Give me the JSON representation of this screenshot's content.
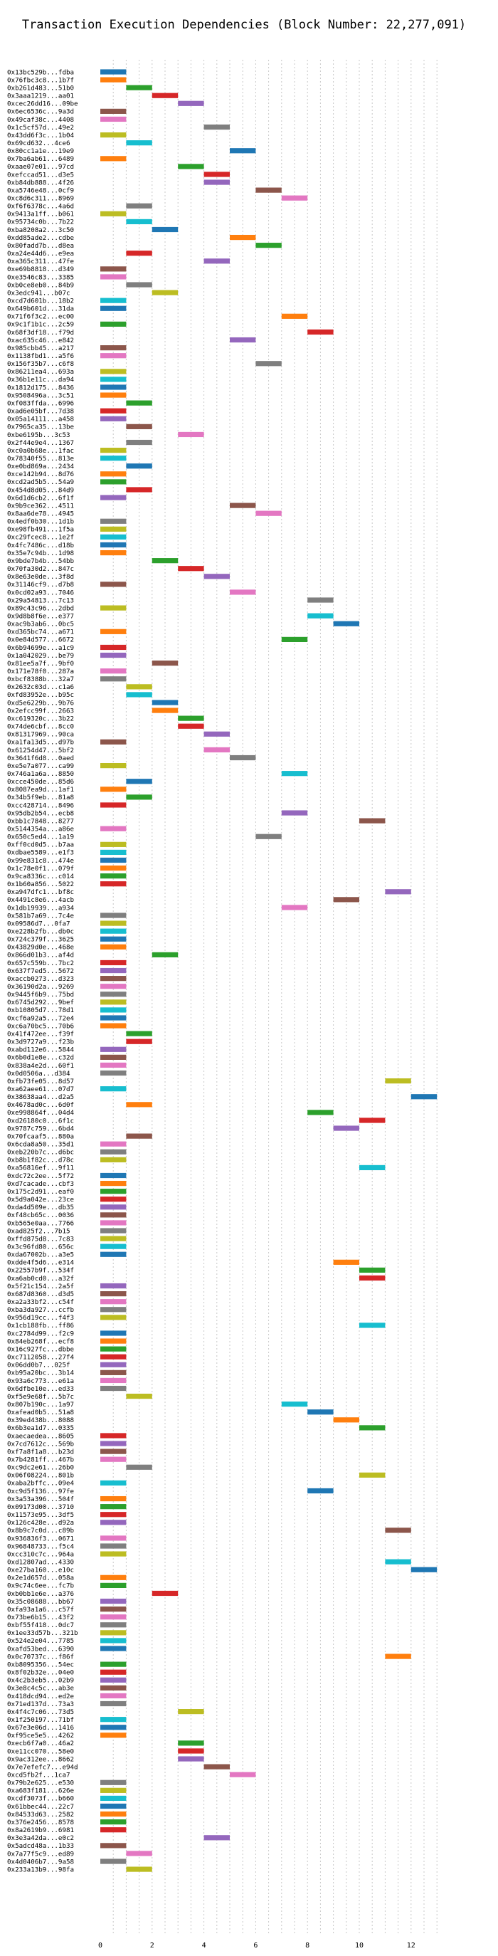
{
  "colors": [
    "#1f77b4",
    "#ff7f0e",
    "#2ca02c",
    "#d62728",
    "#9467bd",
    "#8c564b",
    "#e377c2",
    "#7f7f7f",
    "#bcbd22",
    "#17becf"
  ],
  "chart_data": {
    "type": "gantt",
    "title": "Transaction Execution Dependencies (Block Number: 22,277,091)",
    "xlabel": "",
    "ylabel": "",
    "xlim": [
      0,
      13.2
    ],
    "xticks": [
      0,
      2,
      4,
      6,
      8,
      10,
      12
    ],
    "grid": "vertical dashed",
    "bar_width": 1,
    "rows": [
      [
        "0x13bc529b...fdba",
        0,
        0
      ],
      [
        "0x76fbc3c8...1b7f",
        0,
        1
      ],
      [
        "0xb261d483...51b0",
        1,
        2
      ],
      [
        "0x3aaa1219...aa01",
        2,
        3
      ],
      [
        "0xcec26dd16...09be",
        3,
        4
      ],
      [
        "0x6ec6536c...9a3d",
        0,
        5
      ],
      [
        "0x49caf38c...4408",
        0,
        6
      ],
      [
        "0x1c5cf57d...49e2",
        4,
        7
      ],
      [
        "0x43dd6f3c...1b04",
        0,
        8
      ],
      [
        "0x69cd632...4ce6",
        1,
        9
      ],
      [
        "0x80cc1a1e...19e9",
        5,
        0
      ],
      [
        "0x7ba6ab61...6489",
        0,
        1
      ],
      [
        "0xaae07e01...97cd",
        3,
        2
      ],
      [
        "0xefccad51...d3e5",
        4,
        3
      ],
      [
        "0xb84db888...4f26",
        4,
        4
      ],
      [
        "0xa5746e48...0cf9",
        6,
        5
      ],
      [
        "0xc8d6c311...8969",
        7,
        6
      ],
      [
        "0xf6f6378c...4a6d",
        1,
        7
      ],
      [
        "0x9413a1ff...b061",
        0,
        8
      ],
      [
        "0x95734c0b...7b22",
        1,
        9
      ],
      [
        "0xba8208a2...3c50",
        2,
        0
      ],
      [
        "0xdd85ade2...cdbe",
        5,
        1
      ],
      [
        "0x80fadd7b...d8ea",
        6,
        2
      ],
      [
        "0xa24e44d6...e9ea",
        1,
        3
      ],
      [
        "0xa365c311...47fe",
        4,
        4
      ],
      [
        "0xe69b8818...d349",
        0,
        5
      ],
      [
        "0xe3546c83...3385",
        0,
        6
      ],
      [
        "0xb0ce8eb0...84b9",
        1,
        7
      ],
      [
        "0x3edc941...b07c",
        2,
        8
      ],
      [
        "0xcd7d601b...18b2",
        0,
        9
      ],
      [
        "0x649b601d...31da",
        0,
        0
      ],
      [
        "0x71f6f3c2...ec00",
        7,
        1
      ],
      [
        "0x9c1f1b1c...2c59",
        0,
        2
      ],
      [
        "0x68f3df18...f79d",
        8,
        3
      ],
      [
        "0xac635c46...e842",
        5,
        4
      ],
      [
        "0x985cbb45...a217",
        0,
        5
      ],
      [
        "0x1138fbd1...a5f6",
        0,
        6
      ],
      [
        "0x156f35b7...c6f8",
        6,
        7
      ],
      [
        "0x86211ea4...693a",
        0,
        8
      ],
      [
        "0x36b1e11c...da94",
        0,
        9
      ],
      [
        "0x1812d175...8436",
        0,
        0
      ],
      [
        "0x9508496a...3c51",
        0,
        1
      ],
      [
        "0xf083ffda...6996",
        1,
        2
      ],
      [
        "0xad6e05bf...7d38",
        0,
        3
      ],
      [
        "0x05a14111...a458",
        0,
        4
      ],
      [
        "0x7965ca35...13be",
        1,
        5
      ],
      [
        "0xbe6195b...3c53",
        3,
        6
      ],
      [
        "0x2f44e9e4...1367",
        1,
        7
      ],
      [
        "0xc0a0b68e...1fac",
        0,
        8
      ],
      [
        "0x78340f55...813e",
        0,
        9
      ],
      [
        "0xe0bd869a...2434",
        1,
        0
      ],
      [
        "0xce142b94...8d76",
        0,
        1
      ],
      [
        "0xcd2ad5b5...54a9",
        0,
        2
      ],
      [
        "0x454d8d05...84d9",
        1,
        3
      ],
      [
        "0x6d1d6cb2...6f1f",
        0,
        4
      ],
      [
        "0x9b9ce362...4511",
        5,
        5
      ],
      [
        "0x8aa6de78...4945",
        6,
        6
      ],
      [
        "0x4edf0b30...1d1b",
        0,
        7
      ],
      [
        "0xe98fb491...1f5a",
        0,
        8
      ],
      [
        "0xc29fcec8...1e2f",
        0,
        9
      ],
      [
        "0x4fc7486c...d18b",
        0,
        0
      ],
      [
        "0x35e7c94b...1d98",
        0,
        1
      ],
      [
        "0x9bde7b4b...54bb",
        2,
        2
      ],
      [
        "0x70fa30d2...847c",
        3,
        3
      ],
      [
        "0x8e63e0de...3f8d",
        4,
        4
      ],
      [
        "0x31146cf9...d7b8",
        0,
        5
      ],
      [
        "0x0cd02a93...7046",
        5,
        6
      ],
      [
        "0x29a54813...7c13",
        8,
        7
      ],
      [
        "0x89c43c96...2dbd",
        0,
        8
      ],
      [
        "0x9d8b8f6e...e377",
        8,
        9
      ],
      [
        "0xac9b3ab6...0bc5",
        9,
        0
      ],
      [
        "0xd365bc74...a671",
        0,
        1
      ],
      [
        "0x0e84d577...6672",
        7,
        2
      ],
      [
        "0x6b94699e...a1c9",
        0,
        3
      ],
      [
        "0x1a042029...be79",
        0,
        4
      ],
      [
        "0x81ee5a7f...9bf0",
        2,
        5
      ],
      [
        "0x171e78f0...287a",
        0,
        6
      ],
      [
        "0xbcf8388b...32a7",
        0,
        7
      ],
      [
        "0x2632c03d...c1a6",
        1,
        8
      ],
      [
        "0xfd83952e...b95c",
        1,
        9
      ],
      [
        "0xd5e6229b...9b76",
        2,
        0
      ],
      [
        "0x2efcc99f...2663",
        2,
        1
      ],
      [
        "0xc619320c...3b22",
        3,
        2
      ],
      [
        "0x74de6cbf...8cc0",
        3,
        3
      ],
      [
        "0x81317969...90ca",
        4,
        4
      ],
      [
        "0xa1fa13d5...d97b",
        0,
        5
      ],
      [
        "0x61254d47...5bf2",
        4,
        6
      ],
      [
        "0x3641f6d8...0aed",
        5,
        7
      ],
      [
        "0xe5e7a077...ca99",
        0,
        8
      ],
      [
        "0x746a1a6a...8850",
        7,
        9
      ],
      [
        "0xcce450de...85d6",
        1,
        0
      ],
      [
        "0x8087ea9d...1af1",
        0,
        1
      ],
      [
        "0x34b5f9eb...81a8",
        1,
        2
      ],
      [
        "0xcc428714...8496",
        0,
        3
      ],
      [
        "0x95db2b54...ecb8",
        7,
        4
      ],
      [
        "0xbb1c7848...8277",
        10,
        5
      ],
      [
        "0x5144354a...a86e",
        0,
        6
      ],
      [
        "0x650c5ed4...1a19",
        6,
        7
      ],
      [
        "0xff0cd0d5...b7aa",
        0,
        8
      ],
      [
        "0xdbae5589...e1f3",
        0,
        9
      ],
      [
        "0x99e831c8...474e",
        0,
        0
      ],
      [
        "0x1c78e0f1...079f",
        0,
        1
      ],
      [
        "0x9ca8336c...c014",
        0,
        2
      ],
      [
        "0x1b60a856...5022",
        0,
        3
      ],
      [
        "0xa947dfc1...bf8c",
        11,
        4
      ],
      [
        "0x4491c8e6...4acb",
        9,
        5
      ],
      [
        "0x1db19939...a934",
        7,
        6
      ],
      [
        "0x581b7a69...7c4e",
        0,
        7
      ],
      [
        "0x09586d7...0fa7",
        0,
        8
      ],
      [
        "0xe228b2fb...db0c",
        0,
        9
      ],
      [
        "0x724c379f...3625",
        0,
        0
      ],
      [
        "0x43829d0e...468e",
        0,
        1
      ],
      [
        "0x866d01b3...af4d",
        2,
        2
      ],
      [
        "0x657c559b...7bc2",
        0,
        3
      ],
      [
        "0x637f7ed5...5672",
        0,
        4
      ],
      [
        "0xaccb0273...d323",
        0,
        5
      ],
      [
        "0x36190d2a...9269",
        0,
        6
      ],
      [
        "0x9445f6b9...75bd",
        0,
        7
      ],
      [
        "0x6745d292...9bef",
        0,
        8
      ],
      [
        "0xb10805d7...78d1",
        0,
        9
      ],
      [
        "0xcf6a92a5...72e4",
        0,
        0
      ],
      [
        "0xc6a70bc5...70b6",
        0,
        1
      ],
      [
        "0x41f472ee...f39f",
        1,
        2
      ],
      [
        "0x3d9727a9...f23b",
        1,
        3
      ],
      [
        "0xabd112e6...5844",
        0,
        4
      ],
      [
        "0x6b0d1e8e...c32d",
        0,
        5
      ],
      [
        "0x838a4e2d...60f1",
        0,
        6
      ],
      [
        "0x0d0506a...d384",
        0,
        7
      ],
      [
        "0xfb73fe05...8d57",
        11,
        8
      ],
      [
        "0xa62aee61...07d7",
        0,
        9
      ],
      [
        "0x38638aa4...d2a5",
        12,
        0
      ],
      [
        "0x4678ad0c...6d0f",
        1,
        1
      ],
      [
        "0xe998864f...04d4",
        8,
        2
      ],
      [
        "0xd26180c0...6f1c",
        10,
        3
      ],
      [
        "0x9787c759...6bd4",
        9,
        4
      ],
      [
        "0x70fcaaf5...880a",
        1,
        5
      ],
      [
        "0x6cda8a50...35d1",
        0,
        6
      ],
      [
        "0xeb220b7c...d6bc",
        0,
        7
      ],
      [
        "0xb8b1f82c...d78c",
        0,
        8
      ],
      [
        "0xa56816ef...9f11",
        10,
        9
      ],
      [
        "0xdc72c2ee...5f72",
        0,
        0
      ],
      [
        "0xd7cacade...cbf3",
        0,
        1
      ],
      [
        "0x175c2d91...eaf0",
        0,
        2
      ],
      [
        "0x5d9a042e...23ce",
        0,
        3
      ],
      [
        "0xda4d509e...db35",
        0,
        4
      ],
      [
        "0xf48cb65c...0036",
        0,
        5
      ],
      [
        "0xb565e0aa...7766",
        0,
        6
      ],
      [
        "0xad825f2...7b15",
        0,
        7
      ],
      [
        "0xffd875d8...7c83",
        0,
        8
      ],
      [
        "0x3c96fd80...656c",
        0,
        9
      ],
      [
        "0xda67002b...a3e5",
        0,
        0
      ],
      [
        "0xdde4f5d6...e314",
        9,
        1
      ],
      [
        "0x22557b9f...534f",
        10,
        2
      ],
      [
        "0xa6ab0cd0...a32f",
        10,
        3
      ],
      [
        "0x5f21c154...2a5f",
        0,
        4
      ],
      [
        "0x687d8360...d3d5",
        0,
        5
      ],
      [
        "0xa2a33bf2...c54f",
        0,
        6
      ],
      [
        "0xba3da927...ccfb",
        0,
        7
      ],
      [
        "0x956d19cc...f4f3",
        0,
        8
      ],
      [
        "0x1cb188fb...ff86",
        10,
        9
      ],
      [
        "0xc2784d99...f2c9",
        0,
        0
      ],
      [
        "0x84eb268f...ecf8",
        0,
        1
      ],
      [
        "0x16c927fc...dbbe",
        0,
        2
      ],
      [
        "0xc7112058...27f4",
        0,
        3
      ],
      [
        "0x06dd0b7...025f",
        0,
        4
      ],
      [
        "0xb95a20bc...3b14",
        0,
        5
      ],
      [
        "0x93a6c773...e61a",
        0,
        6
      ],
      [
        "0x6dfbe10e...ed33",
        0,
        7
      ],
      [
        "0xf5e9e68f...5b7c",
        1,
        8
      ],
      [
        "0x807b190c...1a97",
        7,
        9
      ],
      [
        "0xafead0b5...51a8",
        8,
        0
      ],
      [
        "0x39ed438b...8088",
        9,
        1
      ],
      [
        "0x6b3ea1d7...0335",
        10,
        2
      ],
      [
        "0xaecaedea...8605",
        0,
        3
      ],
      [
        "0x7cd7612c...569b",
        0,
        4
      ],
      [
        "0xf7a8f1a8...b23d",
        0,
        5
      ],
      [
        "0x7b4281ff...467b",
        0,
        6
      ],
      [
        "0xc9dc2e61...26b0",
        1,
        7
      ],
      [
        "0x06f08224...801b",
        10,
        8
      ],
      [
        "0xaba2bffc...09e4",
        0,
        9
      ],
      [
        "0xc9d5f136...97fe",
        8,
        0
      ],
      [
        "0x3a53a396...504f",
        0,
        1
      ],
      [
        "0x09173d00...3710",
        0,
        2
      ],
      [
        "0x11573e95...3df5",
        0,
        3
      ],
      [
        "0x126c428e...d92a",
        0,
        4
      ],
      [
        "0x8b9c7c0d...c89b",
        11,
        5
      ],
      [
        "0x936836f3...0671",
        0,
        6
      ],
      [
        "0x96848733...f5c4",
        0,
        7
      ],
      [
        "0xcc310c7c...964a",
        0,
        8
      ],
      [
        "0xd12807ad...4330",
        11,
        9
      ],
      [
        "0xe27ba160...e10c",
        12,
        0
      ],
      [
        "0x2e1d657d...058a",
        0,
        1
      ],
      [
        "0x9c74c6ee...fc7b",
        0,
        2
      ],
      [
        "0xb0bb1e6e...a376",
        2,
        3
      ],
      [
        "0x35c08688...bb67",
        0,
        4
      ],
      [
        "0xfa93a1a6...c57f",
        0,
        5
      ],
      [
        "0x73be6b15...43f2",
        0,
        6
      ],
      [
        "0xbf55f418...0dc7",
        0,
        7
      ],
      [
        "0x1ee33d57b...321b",
        0,
        8
      ],
      [
        "0x524e2e04...7785",
        0,
        9
      ],
      [
        "0xafd53bed...6390",
        0,
        0
      ],
      [
        "0x0c70737c...f86f",
        11,
        1
      ],
      [
        "0xb8095356...54ec",
        0,
        2
      ],
      [
        "0x8f02b32e...04e0",
        0,
        3
      ],
      [
        "0x4c2b3eb5...02b9",
        0,
        4
      ],
      [
        "0x3e8c4c5c...ab3e",
        0,
        5
      ],
      [
        "0x418dcd94...ed2e",
        0,
        6
      ],
      [
        "0x71ed137d...73a3",
        0,
        7
      ],
      [
        "0x4f4c7c06...73d5",
        3,
        8
      ],
      [
        "0x1f250197...71bf",
        0,
        9
      ],
      [
        "0x67e3e06d...1416",
        0,
        0
      ],
      [
        "0xf95ce5e5...4262",
        0,
        1
      ],
      [
        "0xecb6f7a0...46a2",
        3,
        2
      ],
      [
        "0xe11cc070...58e0",
        3,
        3
      ],
      [
        "0x9ac312ee...8662",
        3,
        4
      ],
      [
        "0x7e7efefc7...e94d",
        4,
        5
      ],
      [
        "0xcd5fb2f...1ca7",
        5,
        6
      ],
      [
        "0x79b2e625...e530",
        0,
        7
      ],
      [
        "0xa683f181...626e",
        0,
        8
      ],
      [
        "0xcdf3073f...b660",
        0,
        9
      ],
      [
        "0x61bbec44...22c7",
        0,
        0
      ],
      [
        "0x84533d63...2582",
        0,
        1
      ],
      [
        "0x376e2456...8578",
        0,
        2
      ],
      [
        "0x8a2619b9...6981",
        0,
        3
      ],
      [
        "0x3e3a42da...e0c2",
        4,
        4
      ],
      [
        "0x5adcd48a...1b33",
        0,
        5
      ],
      [
        "0x7a77f5c9...ed89",
        1,
        6
      ],
      [
        "0x4d0406b7...9a58",
        0,
        7
      ],
      [
        "0x233a13b9...98fa",
        1,
        8
      ]
    ]
  }
}
